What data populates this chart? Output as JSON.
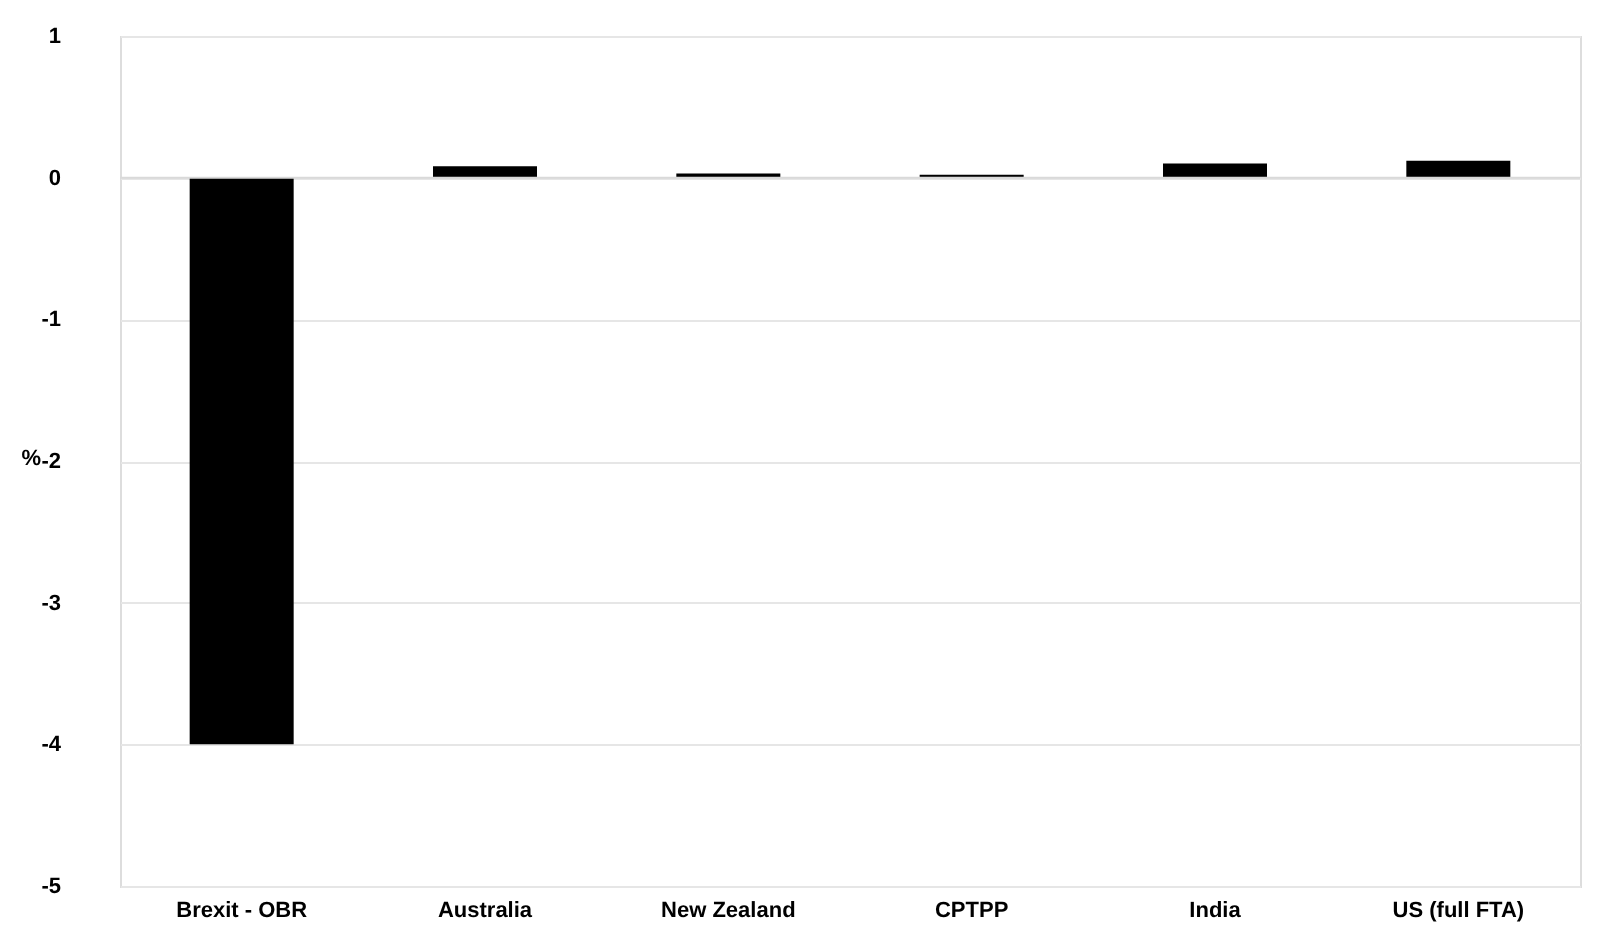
{
  "chart_data": {
    "type": "bar",
    "ylabel": "%",
    "categories": [
      "Brexit - OBR",
      "Australia",
      "New Zealand",
      "CPTPP",
      "India",
      "US (full FTA)"
    ],
    "values": [
      -4,
      0.08,
      0.03,
      0.02,
      0.1,
      0.12
    ],
    "color": "#000000",
    "ylim": [
      -5,
      1
    ],
    "yticks": [
      -5,
      -4,
      -3,
      -2,
      -1,
      0,
      1
    ],
    "grid": "y"
  }
}
